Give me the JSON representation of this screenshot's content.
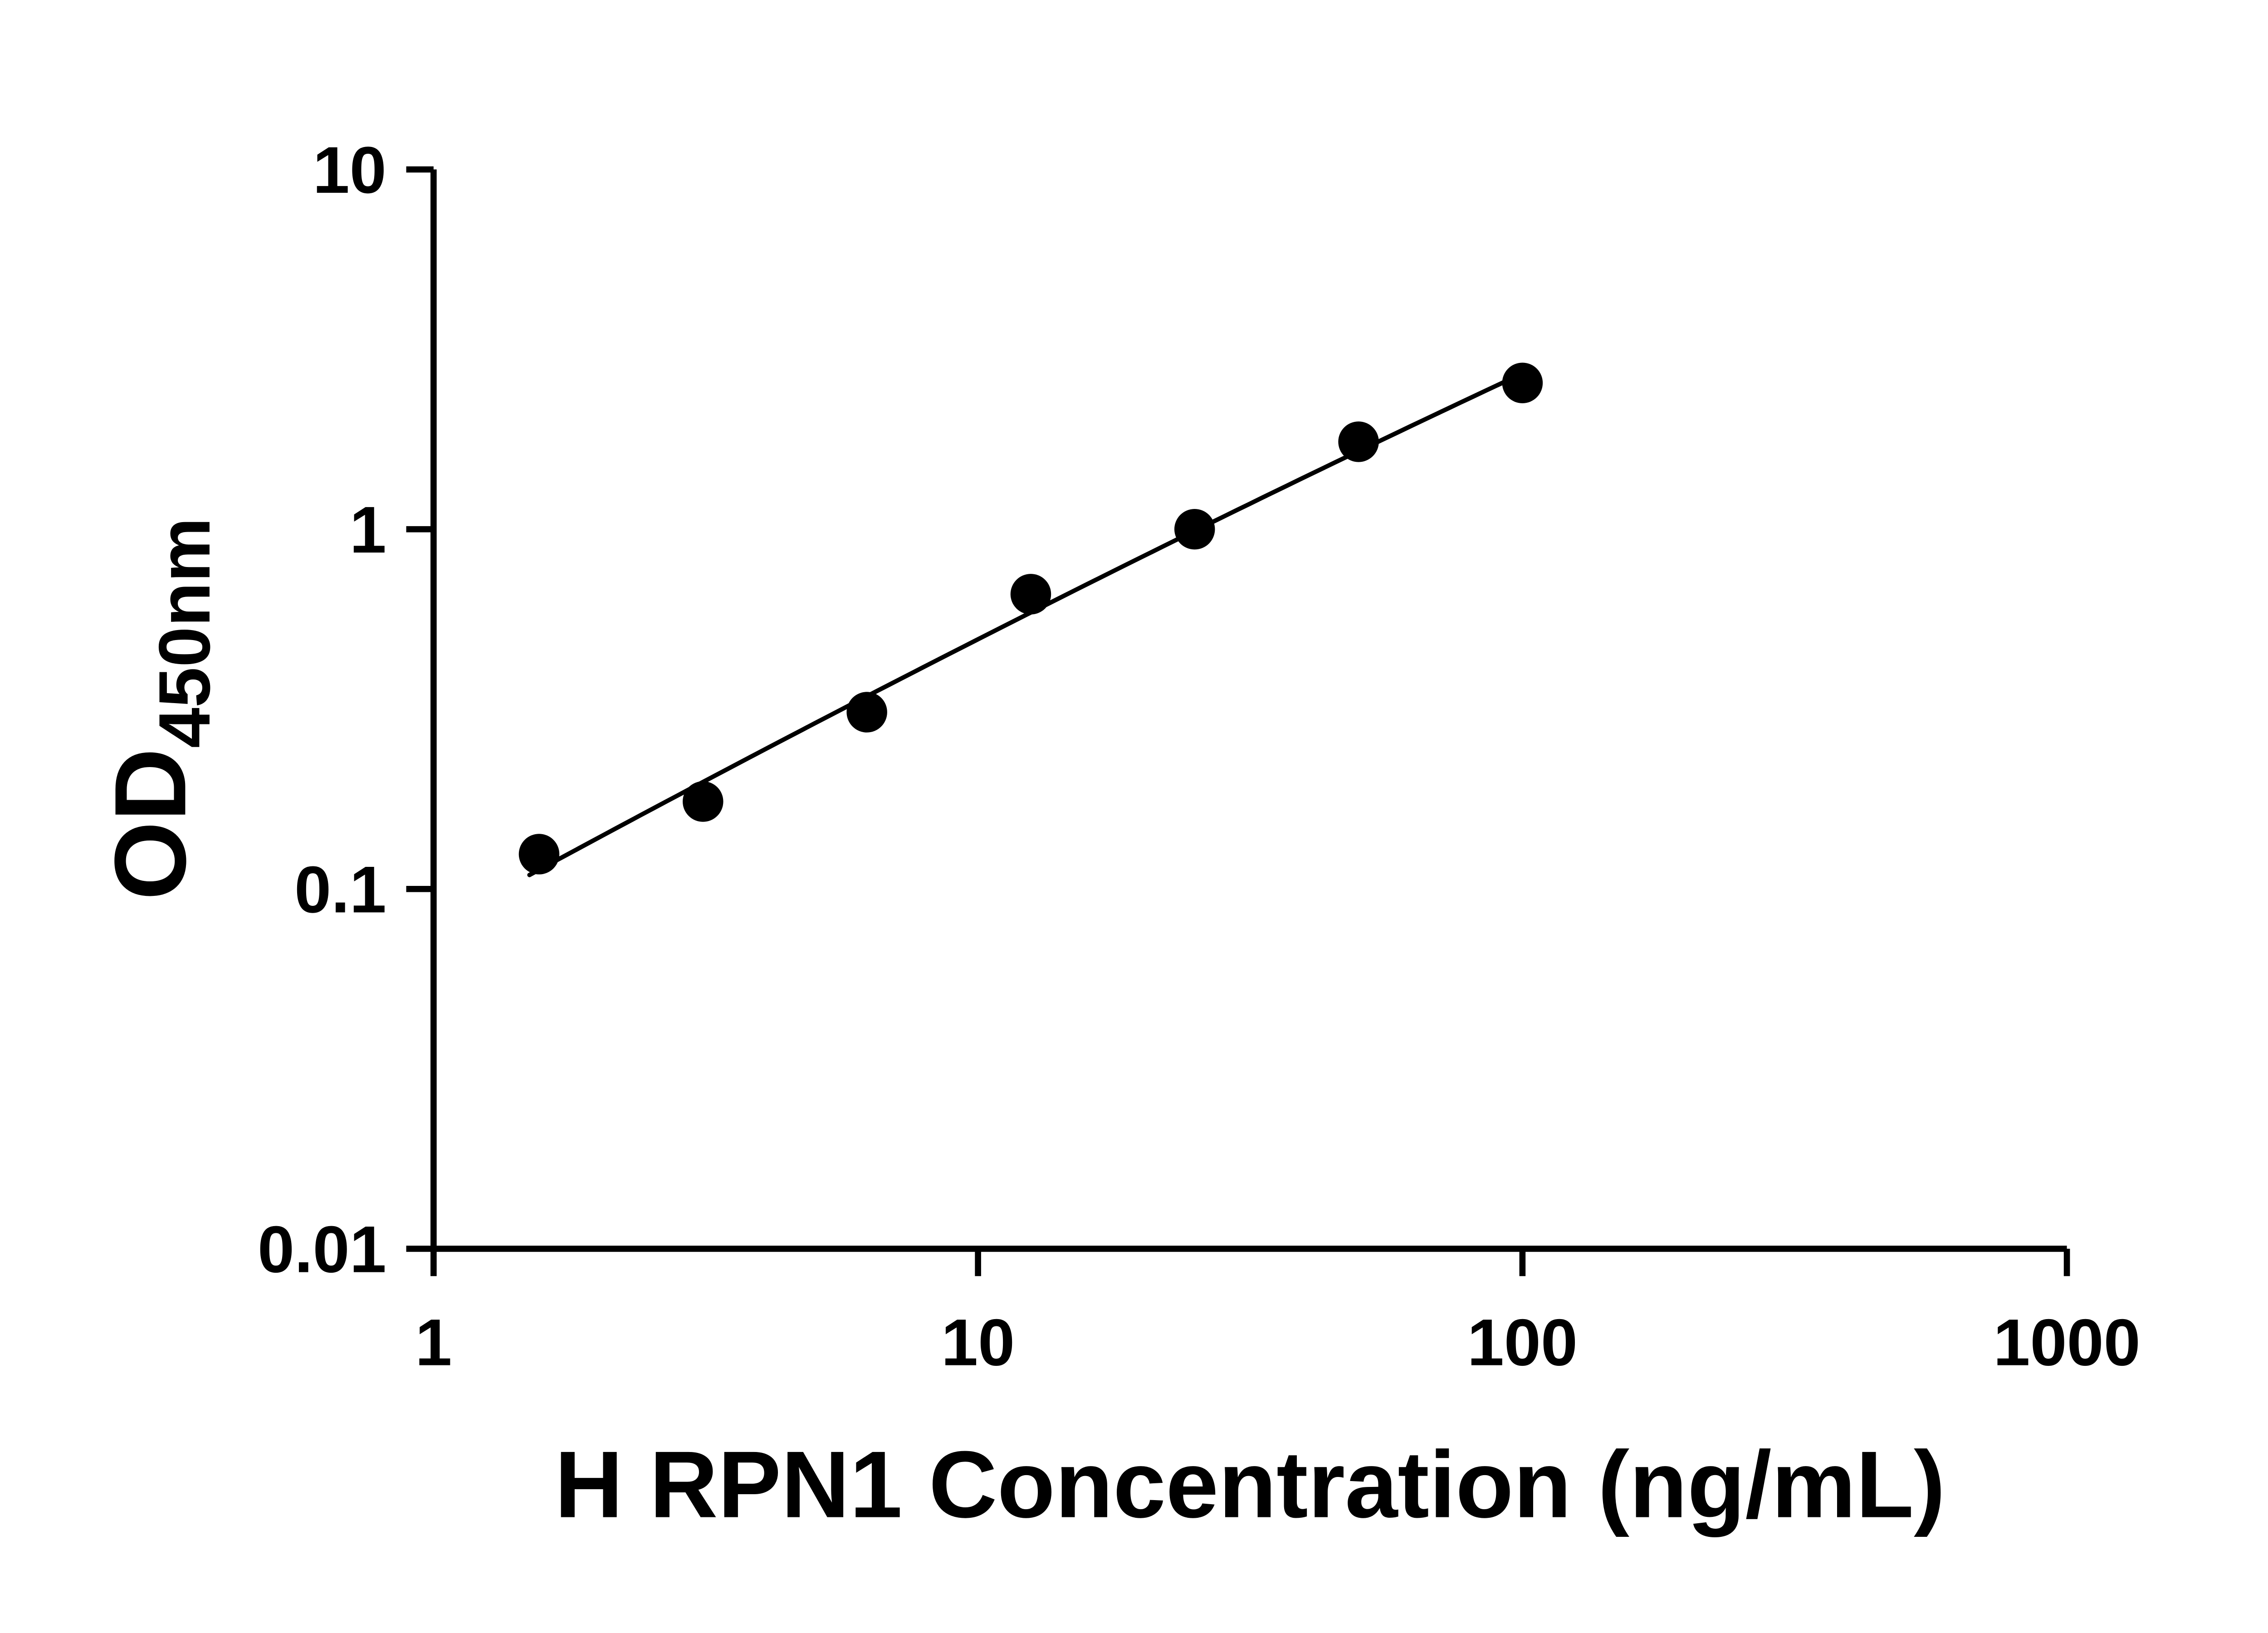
{
  "figure": {
    "background_color": "#ffffff"
  },
  "chart_data": {
    "type": "scatter",
    "title": "",
    "xlabel": "H RPN1 Concentration (ng/mL)",
    "ylabel_main": "OD",
    "ylabel_sub": "450nm",
    "x_scale": "log10",
    "y_scale": "log10",
    "xlim": [
      1,
      1000
    ],
    "ylim": [
      0.01,
      10
    ],
    "grid": false,
    "legend": "none",
    "x_ticks": [
      {
        "value": 1,
        "label": "1"
      },
      {
        "value": 10,
        "label": "10"
      },
      {
        "value": 100,
        "label": "100"
      },
      {
        "value": 1000,
        "label": "1000"
      }
    ],
    "y_ticks": [
      {
        "value": 0.01,
        "label": "0.01"
      },
      {
        "value": 0.1,
        "label": "0.1"
      },
      {
        "value": 1,
        "label": "1"
      },
      {
        "value": 10,
        "label": "10"
      }
    ],
    "points": [
      {
        "x": 1.5625,
        "y": 0.125
      },
      {
        "x": 3.125,
        "y": 0.175
      },
      {
        "x": 6.25,
        "y": 0.31
      },
      {
        "x": 12.5,
        "y": 0.66
      },
      {
        "x": 25,
        "y": 1.0
      },
      {
        "x": 50,
        "y": 1.75
      },
      {
        "x": 100,
        "y": 2.55
      }
    ],
    "fit_curve": {
      "type": "log_quadratic",
      "a": -1.1066,
      "b": 0.8316,
      "c": -0.0309,
      "x_start": 1.5,
      "x_end": 100
    },
    "marker_color": "#000000",
    "line_color": "#000000",
    "axis_color": "#000000"
  }
}
